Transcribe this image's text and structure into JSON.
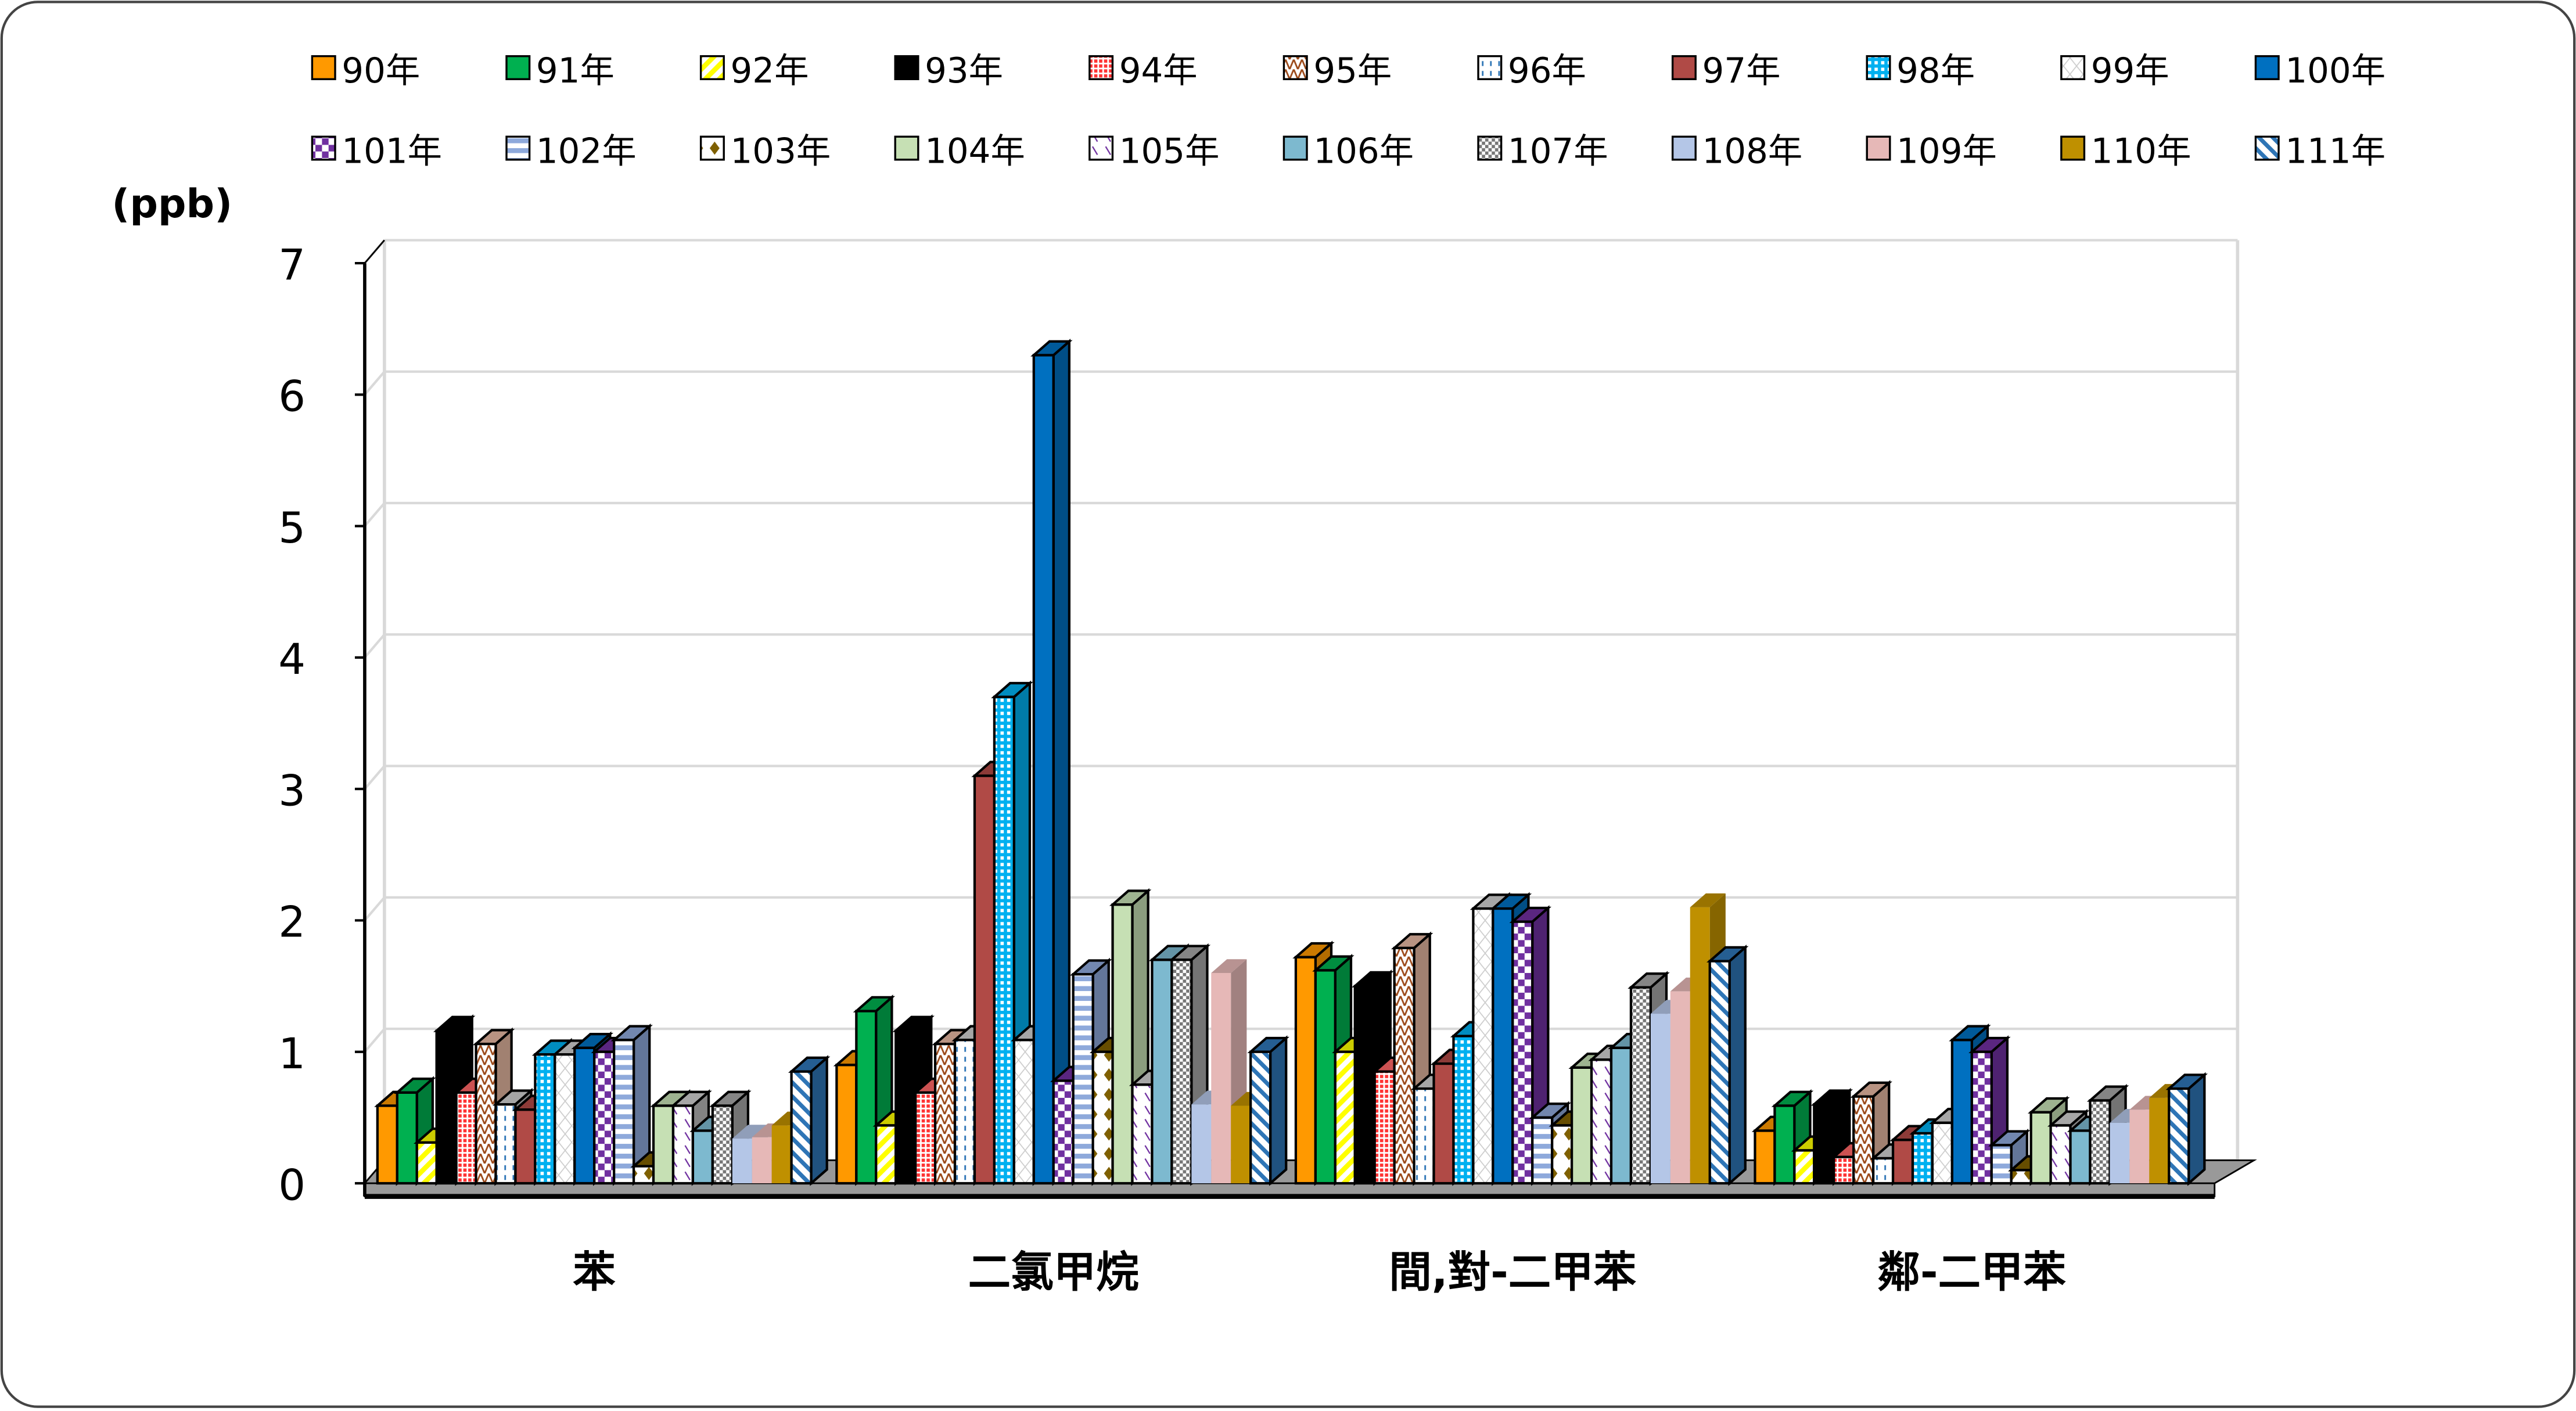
{
  "chart_data": {
    "type": "bar",
    "style": "3d-clustered",
    "ylabel": "(ppb)",
    "ylim": [
      0,
      7
    ],
    "yticks": [
      "0",
      "1",
      "2",
      "3",
      "4",
      "5",
      "6",
      "7"
    ],
    "grid": true,
    "legend_placement": "top",
    "categories": [
      "苯",
      "二氯甲烷",
      "間,對-二甲苯",
      "鄰-二甲苯"
    ],
    "series": [
      {
        "name": "90年",
        "color": "#FF9900",
        "values": [
          0.59,
          0.9,
          1.72,
          0.4
        ]
      },
      {
        "name": "91年",
        "color": "#00B050",
        "values": [
          0.69,
          1.31,
          1.62,
          0.59
        ]
      },
      {
        "name": "92年",
        "color": "#FFFF00",
        "values": [
          0.31,
          0.44,
          1.0,
          0.25
        ]
      },
      {
        "name": "93年",
        "color": "#000000",
        "values": [
          1.16,
          1.16,
          1.5,
          0.6
        ]
      },
      {
        "name": "94年",
        "color": "#FF6666",
        "values": [
          0.69,
          0.69,
          0.85,
          0.2
        ]
      },
      {
        "name": "95年",
        "color": "#E6B8A2",
        "values": [
          1.06,
          1.06,
          1.79,
          0.66
        ]
      },
      {
        "name": "96年",
        "color": "#FFFFFF",
        "values": [
          0.6,
          1.09,
          0.72,
          0.19
        ]
      },
      {
        "name": "97年",
        "color": "#B04A46",
        "values": [
          0.56,
          3.1,
          0.91,
          0.33
        ]
      },
      {
        "name": "98年",
        "color": "#00B0F0",
        "values": [
          0.98,
          3.7,
          1.12,
          0.38
        ]
      },
      {
        "name": "99年",
        "color": "#FFFFFF",
        "values": [
          0.98,
          1.09,
          2.09,
          0.46
        ]
      },
      {
        "name": "100年",
        "color": "#0070C0",
        "values": [
          1.03,
          6.3,
          2.09,
          1.09
        ]
      },
      {
        "name": "101年",
        "color": "#7030A0",
        "values": [
          1.0,
          0.78,
          1.99,
          1.0
        ]
      },
      {
        "name": "102年",
        "color": "#8EA9DB",
        "values": [
          1.09,
          1.59,
          0.5,
          0.29
        ]
      },
      {
        "name": "103年",
        "color": "#7F6000",
        "values": [
          0.13,
          1.0,
          0.44,
          0.1
        ]
      },
      {
        "name": "104年",
        "color": "#C6E0B4",
        "values": [
          0.59,
          2.12,
          0.88,
          0.54
        ]
      },
      {
        "name": "105年",
        "color": "#FFFFFF",
        "values": [
          0.59,
          0.75,
          0.94,
          0.44
        ]
      },
      {
        "name": "106年",
        "color": "#7DB9CF",
        "values": [
          0.4,
          1.7,
          1.03,
          0.4
        ]
      },
      {
        "name": "107年",
        "color": "#A6A6A6",
        "values": [
          0.59,
          1.7,
          1.49,
          0.63
        ]
      },
      {
        "name": "108年",
        "color": "#B4C6E7",
        "values": [
          0.34,
          0.6,
          1.29,
          0.46
        ]
      },
      {
        "name": "109年",
        "color": "#E6B8B7",
        "values": [
          0.35,
          1.6,
          1.46,
          0.56
        ]
      },
      {
        "name": "110年",
        "color": "#BF9000",
        "values": [
          0.44,
          0.59,
          2.1,
          0.65
        ]
      },
      {
        "name": "111年",
        "color": "#2E75B6",
        "values": [
          0.85,
          1.0,
          1.69,
          0.72
        ]
      }
    ]
  }
}
